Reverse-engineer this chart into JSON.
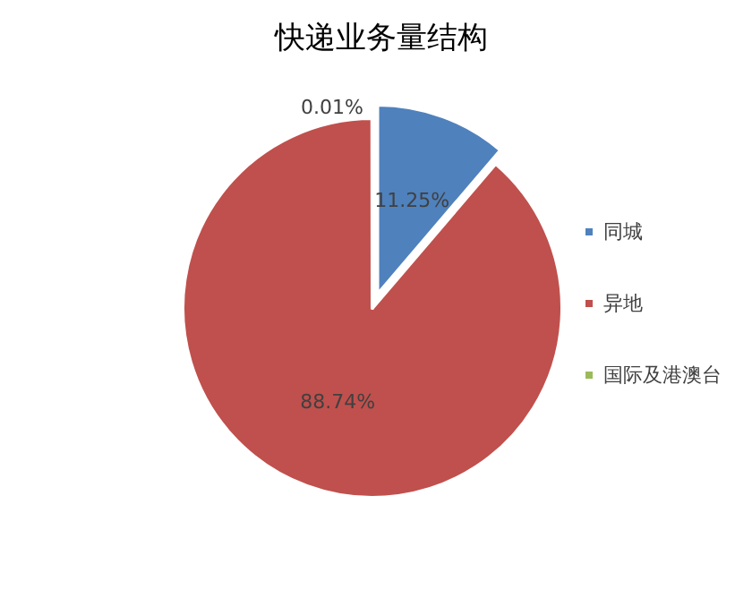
{
  "chart_data": {
    "type": "pie",
    "title": "快递业务量结构",
    "categories": [
      "同城",
      "异地",
      "国际及港澳台"
    ],
    "values": [
      11.25,
      88.74,
      0.01
    ],
    "colors": [
      "#4f81bd",
      "#c0504d",
      "#9bbb59"
    ],
    "value_labels": [
      "11.25%",
      "88.74%",
      "0.01%"
    ],
    "legend": "right"
  }
}
